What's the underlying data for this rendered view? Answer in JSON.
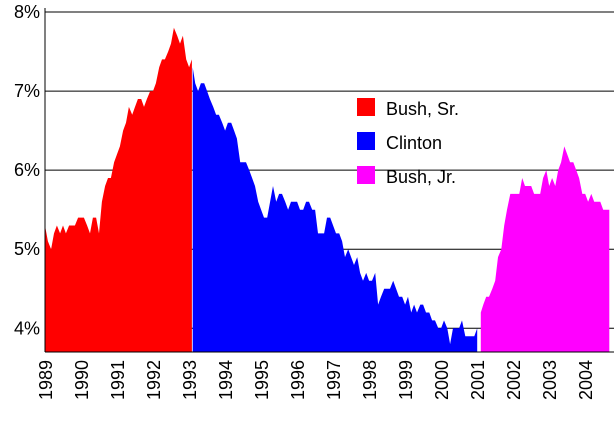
{
  "chart_data": {
    "type": "area",
    "title": "",
    "xlabel": "",
    "ylabel": "",
    "ylim": [
      3.7,
      8.0
    ],
    "xlim": [
      1989.0,
      2004.8
    ],
    "grid": true,
    "legend_placement": "upper-center-right",
    "y_ticks": [
      {
        "value": 4,
        "label": "4%"
      },
      {
        "value": 5,
        "label": "5%"
      },
      {
        "value": 6,
        "label": "6%"
      },
      {
        "value": 7,
        "label": "7%"
      },
      {
        "value": 8,
        "label": "8%"
      }
    ],
    "x_ticks": [
      "1989",
      "1990",
      "1991",
      "1992",
      "1993",
      "1994",
      "1995",
      "1996",
      "1997",
      "1998",
      "1999",
      "2000",
      "2001",
      "2002",
      "2003",
      "2004"
    ],
    "series": [
      {
        "name": "Bush, Sr.",
        "color": "#ff0000",
        "points": [
          [
            1989.0,
            5.3
          ],
          [
            1989.08,
            5.1
          ],
          [
            1989.17,
            5.0
          ],
          [
            1989.25,
            5.2
          ],
          [
            1989.33,
            5.3
          ],
          [
            1989.42,
            5.2
          ],
          [
            1989.5,
            5.3
          ],
          [
            1989.58,
            5.2
          ],
          [
            1989.67,
            5.3
          ],
          [
            1989.75,
            5.3
          ],
          [
            1989.83,
            5.3
          ],
          [
            1989.92,
            5.4
          ],
          [
            1990.0,
            5.4
          ],
          [
            1990.08,
            5.4
          ],
          [
            1990.17,
            5.3
          ],
          [
            1990.25,
            5.2
          ],
          [
            1990.33,
            5.4
          ],
          [
            1990.42,
            5.4
          ],
          [
            1990.5,
            5.2
          ],
          [
            1990.58,
            5.6
          ],
          [
            1990.67,
            5.8
          ],
          [
            1990.75,
            5.9
          ],
          [
            1990.83,
            5.9
          ],
          [
            1990.92,
            6.1
          ],
          [
            1991.0,
            6.2
          ],
          [
            1991.08,
            6.3
          ],
          [
            1991.17,
            6.5
          ],
          [
            1991.25,
            6.6
          ],
          [
            1991.33,
            6.8
          ],
          [
            1991.42,
            6.7
          ],
          [
            1991.5,
            6.8
          ],
          [
            1991.58,
            6.9
          ],
          [
            1991.67,
            6.9
          ],
          [
            1991.75,
            6.8
          ],
          [
            1991.83,
            6.9
          ],
          [
            1991.92,
            7.0
          ],
          [
            1992.0,
            7.0
          ],
          [
            1992.08,
            7.1
          ],
          [
            1992.17,
            7.3
          ],
          [
            1992.25,
            7.4
          ],
          [
            1992.33,
            7.4
          ],
          [
            1992.42,
            7.5
          ],
          [
            1992.5,
            7.6
          ],
          [
            1992.58,
            7.8
          ],
          [
            1992.67,
            7.7
          ],
          [
            1992.75,
            7.6
          ],
          [
            1992.83,
            7.7
          ],
          [
            1992.92,
            7.4
          ],
          [
            1993.0,
            7.3
          ],
          [
            1993.08,
            7.4
          ]
        ]
      },
      {
        "name": "Clinton",
        "color": "#0000ff",
        "points": [
          [
            1993.1,
            7.3
          ],
          [
            1993.17,
            7.1
          ],
          [
            1993.25,
            7.0
          ],
          [
            1993.33,
            7.1
          ],
          [
            1993.42,
            7.1
          ],
          [
            1993.5,
            7.0
          ],
          [
            1993.58,
            6.9
          ],
          [
            1993.67,
            6.8
          ],
          [
            1993.75,
            6.7
          ],
          [
            1993.83,
            6.7
          ],
          [
            1993.92,
            6.6
          ],
          [
            1994.0,
            6.5
          ],
          [
            1994.08,
            6.6
          ],
          [
            1994.17,
            6.6
          ],
          [
            1994.25,
            6.5
          ],
          [
            1994.33,
            6.4
          ],
          [
            1994.42,
            6.1
          ],
          [
            1994.5,
            6.1
          ],
          [
            1994.58,
            6.1
          ],
          [
            1994.67,
            6.0
          ],
          [
            1994.75,
            5.9
          ],
          [
            1994.83,
            5.8
          ],
          [
            1994.92,
            5.6
          ],
          [
            1995.0,
            5.5
          ],
          [
            1995.08,
            5.4
          ],
          [
            1995.17,
            5.4
          ],
          [
            1995.25,
            5.6
          ],
          [
            1995.33,
            5.8
          ],
          [
            1995.42,
            5.6
          ],
          [
            1995.5,
            5.7
          ],
          [
            1995.58,
            5.7
          ],
          [
            1995.67,
            5.6
          ],
          [
            1995.75,
            5.5
          ],
          [
            1995.83,
            5.6
          ],
          [
            1995.92,
            5.6
          ],
          [
            1996.0,
            5.6
          ],
          [
            1996.08,
            5.5
          ],
          [
            1996.17,
            5.5
          ],
          [
            1996.25,
            5.6
          ],
          [
            1996.33,
            5.6
          ],
          [
            1996.42,
            5.5
          ],
          [
            1996.5,
            5.5
          ],
          [
            1996.58,
            5.2
          ],
          [
            1996.67,
            5.2
          ],
          [
            1996.75,
            5.2
          ],
          [
            1996.83,
            5.4
          ],
          [
            1996.92,
            5.4
          ],
          [
            1997.0,
            5.3
          ],
          [
            1997.08,
            5.2
          ],
          [
            1997.17,
            5.2
          ],
          [
            1997.25,
            5.1
          ],
          [
            1997.33,
            4.9
          ],
          [
            1997.42,
            5.0
          ],
          [
            1997.5,
            4.9
          ],
          [
            1997.58,
            4.8
          ],
          [
            1997.67,
            4.9
          ],
          [
            1997.75,
            4.7
          ],
          [
            1997.83,
            4.6
          ],
          [
            1997.92,
            4.7
          ],
          [
            1998.0,
            4.6
          ],
          [
            1998.08,
            4.6
          ],
          [
            1998.17,
            4.7
          ],
          [
            1998.25,
            4.3
          ],
          [
            1998.33,
            4.4
          ],
          [
            1998.42,
            4.5
          ],
          [
            1998.5,
            4.5
          ],
          [
            1998.58,
            4.5
          ],
          [
            1998.67,
            4.6
          ],
          [
            1998.75,
            4.5
          ],
          [
            1998.83,
            4.4
          ],
          [
            1998.92,
            4.4
          ],
          [
            1999.0,
            4.3
          ],
          [
            1999.08,
            4.4
          ],
          [
            1999.17,
            4.2
          ],
          [
            1999.25,
            4.3
          ],
          [
            1999.33,
            4.2
          ],
          [
            1999.42,
            4.3
          ],
          [
            1999.5,
            4.3
          ],
          [
            1999.58,
            4.2
          ],
          [
            1999.67,
            4.2
          ],
          [
            1999.75,
            4.1
          ],
          [
            1999.83,
            4.1
          ],
          [
            1999.92,
            4.0
          ],
          [
            2000.0,
            4.0
          ],
          [
            2000.08,
            4.1
          ],
          [
            2000.17,
            4.0
          ],
          [
            2000.25,
            3.8
          ],
          [
            2000.33,
            4.0
          ],
          [
            2000.42,
            4.0
          ],
          [
            2000.5,
            4.0
          ],
          [
            2000.58,
            4.1
          ],
          [
            2000.67,
            3.9
          ],
          [
            2000.75,
            3.9
          ],
          [
            2000.83,
            3.9
          ],
          [
            2000.92,
            3.9
          ],
          [
            2001.0,
            4.0
          ]
        ]
      },
      {
        "name": "Bush, Jr.",
        "color": "#ff00ff",
        "points": [
          [
            2001.1,
            4.2
          ],
          [
            2001.17,
            4.3
          ],
          [
            2001.25,
            4.4
          ],
          [
            2001.33,
            4.4
          ],
          [
            2001.42,
            4.5
          ],
          [
            2001.5,
            4.6
          ],
          [
            2001.58,
            4.9
          ],
          [
            2001.67,
            5.0
          ],
          [
            2001.75,
            5.3
          ],
          [
            2001.83,
            5.5
          ],
          [
            2001.92,
            5.7
          ],
          [
            2002.0,
            5.7
          ],
          [
            2002.08,
            5.7
          ],
          [
            2002.17,
            5.7
          ],
          [
            2002.25,
            5.9
          ],
          [
            2002.33,
            5.8
          ],
          [
            2002.42,
            5.8
          ],
          [
            2002.5,
            5.8
          ],
          [
            2002.58,
            5.7
          ],
          [
            2002.67,
            5.7
          ],
          [
            2002.75,
            5.7
          ],
          [
            2002.83,
            5.9
          ],
          [
            2002.92,
            6.0
          ],
          [
            2003.0,
            5.8
          ],
          [
            2003.08,
            5.9
          ],
          [
            2003.17,
            5.8
          ],
          [
            2003.25,
            6.0
          ],
          [
            2003.33,
            6.1
          ],
          [
            2003.42,
            6.3
          ],
          [
            2003.5,
            6.2
          ],
          [
            2003.58,
            6.1
          ],
          [
            2003.67,
            6.1
          ],
          [
            2003.75,
            6.0
          ],
          [
            2003.83,
            5.9
          ],
          [
            2003.92,
            5.7
          ],
          [
            2004.0,
            5.7
          ],
          [
            2004.08,
            5.6
          ],
          [
            2004.17,
            5.7
          ],
          [
            2004.25,
            5.6
          ],
          [
            2004.33,
            5.6
          ],
          [
            2004.42,
            5.6
          ],
          [
            2004.5,
            5.5
          ],
          [
            2004.58,
            5.5
          ],
          [
            2004.67,
            5.5
          ]
        ]
      }
    ]
  }
}
